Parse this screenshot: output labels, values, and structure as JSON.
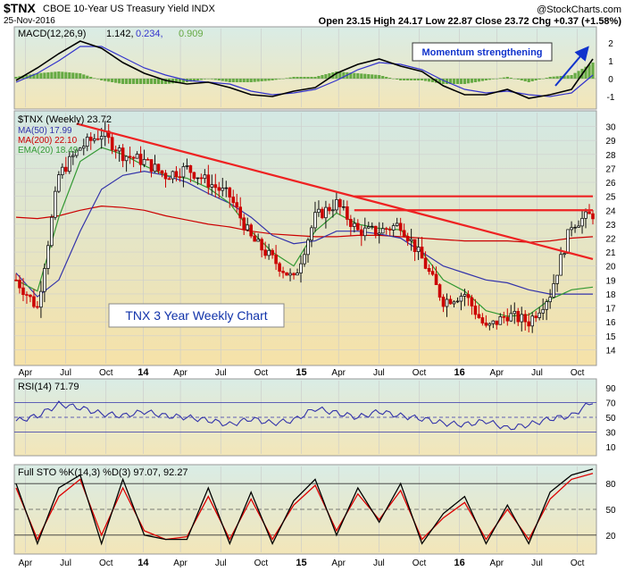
{
  "header": {
    "symbol": "$TNX",
    "name": "CBOE 10-Year US Treasury Yield INDX",
    "date": "25-Nov-2016",
    "quote": "Open 23.15  High 24.17  Low 22.87  Close 23.72  Chg +0.37 (+1.58%)",
    "copyright": "@StockCharts.com"
  },
  "chart_data": [
    {
      "panel": "macd",
      "type": "line",
      "legend_prefix": "MACD(12,26,9)",
      "macd_value": "1.142,",
      "signal_value": "0.234,",
      "hist_value": "0.909",
      "annotation": "Momentum strengthening",
      "ylim": [
        -1.6,
        2.8
      ],
      "yticks": [
        "2",
        "1",
        "0",
        "-1"
      ],
      "colors": {
        "macd": "#000000",
        "signal": "#3333cc",
        "hist": "#66aa44"
      },
      "x": [
        0,
        6,
        12,
        18,
        24,
        30,
        36,
        42,
        48,
        54,
        60,
        66,
        72,
        78,
        84,
        90,
        96,
        102,
        108,
        114,
        120,
        126,
        132,
        138,
        144,
        150,
        156,
        162
      ],
      "macd": [
        -0.1,
        0.6,
        1.4,
        2.1,
        1.7,
        0.9,
        0.3,
        -0.1,
        -0.3,
        -0.2,
        -0.5,
        -0.9,
        -1.0,
        -0.7,
        -0.5,
        0.3,
        0.8,
        1.1,
        0.7,
        0.4,
        -0.4,
        -0.9,
        -0.9,
        -0.6,
        -1.1,
        -0.9,
        -0.6,
        1.1
      ],
      "signal": [
        -0.2,
        0.3,
        1.0,
        1.8,
        1.8,
        1.2,
        0.6,
        0.2,
        -0.1,
        -0.2,
        -0.3,
        -0.7,
        -0.9,
        -0.8,
        -0.6,
        -0.1,
        0.5,
        0.9,
        0.8,
        0.5,
        -0.1,
        -0.6,
        -0.8,
        -0.7,
        -0.9,
        -1.0,
        -0.8,
        0.2
      ]
    },
    {
      "panel": "price",
      "type": "line",
      "legend_main": "$TNX (Weekly) 23.72",
      "legend_ma50": "MA(50) 17.99",
      "legend_ma200": "MA(200) 22.10",
      "legend_ema20": "EMA(20) 18.49",
      "caption": "TNX 3 Year Weekly Chart",
      "ylim": [
        13,
        31
      ],
      "yticks": [
        "30",
        "29",
        "28",
        "27",
        "26",
        "25",
        "24",
        "23",
        "22",
        "21",
        "20",
        "19",
        "18",
        "17",
        "16",
        "15",
        "14"
      ],
      "colors": {
        "price": "#000000",
        "ma50": "#3333aa",
        "ma200": "#cc0000",
        "ema20": "#339933",
        "trend": "#ee2222"
      },
      "x": [
        0,
        6,
        12,
        18,
        24,
        30,
        36,
        42,
        48,
        54,
        60,
        66,
        72,
        78,
        84,
        90,
        96,
        102,
        108,
        114,
        120,
        126,
        132,
        138,
        144,
        150,
        156,
        162
      ],
      "close": [
        19.0,
        17.0,
        26.5,
        28.5,
        29.5,
        28.0,
        27.5,
        26.5,
        27.0,
        26.0,
        25.0,
        22.0,
        20.5,
        19.0,
        23.5,
        24.5,
        22.5,
        22.5,
        23.0,
        20.5,
        17.5,
        18.0,
        15.5,
        16.5,
        16.0,
        18.0,
        23.0,
        23.72
      ],
      "ma50": [
        19.5,
        17.8,
        19.0,
        22.5,
        25.5,
        26.5,
        26.8,
        26.5,
        26.0,
        25.2,
        24.5,
        23.5,
        22.2,
        21.6,
        21.8,
        22.5,
        22.5,
        22.3,
        22.0,
        21.0,
        20.0,
        19.5,
        19.0,
        18.8,
        18.3,
        17.99,
        17.99,
        17.99
      ],
      "ma200": [
        23.5,
        23.4,
        23.6,
        24.0,
        24.3,
        24.2,
        24.0,
        23.6,
        23.3,
        23.0,
        22.8,
        22.5,
        22.3,
        22.2,
        22.1,
        22.1,
        22.2,
        22.2,
        22.1,
        22.0,
        21.9,
        21.8,
        21.8,
        21.8,
        21.7,
        21.8,
        22.0,
        22.1
      ],
      "ema20": [
        19.0,
        18.2,
        23.5,
        27.5,
        28.5,
        28.0,
        27.2,
        26.5,
        26.3,
        25.6,
        24.5,
        22.5,
        21.0,
        20.0,
        22.5,
        23.8,
        23.0,
        22.7,
        22.6,
        21.0,
        19.0,
        18.2,
        16.8,
        16.4,
        16.5,
        17.6,
        18.3,
        18.49
      ],
      "trendlines": [
        {
          "from": [
            17,
            30.2
          ],
          "to": [
            162,
            20.5
          ]
        },
        {
          "from": [
            95,
            25.0
          ],
          "to": [
            162,
            25.0
          ]
        },
        {
          "from": [
            95,
            24.0
          ],
          "to": [
            162,
            24.0
          ]
        }
      ]
    },
    {
      "panel": "rsi",
      "type": "line",
      "legend": "RSI(14) 71.79",
      "ylim": [
        0,
        100
      ],
      "yticks": [
        "90",
        "70",
        "50",
        "30",
        "10"
      ],
      "levels": [
        70,
        50,
        30
      ],
      "color": "#3333aa",
      "x": [
        0,
        6,
        12,
        18,
        24,
        30,
        36,
        42,
        48,
        54,
        60,
        66,
        72,
        78,
        84,
        90,
        96,
        102,
        108,
        114,
        120,
        126,
        132,
        138,
        144,
        150,
        156,
        162
      ],
      "values": [
        45,
        52,
        68,
        63,
        55,
        52,
        58,
        52,
        50,
        46,
        40,
        48,
        42,
        46,
        62,
        56,
        50,
        58,
        52,
        48,
        42,
        40,
        45,
        35,
        40,
        48,
        52,
        72
      ]
    },
    {
      "panel": "sto",
      "type": "line",
      "legend": "Full STO %K(14,3) %D(3) 97.07, 92.27",
      "ylim": [
        0,
        100
      ],
      "yticks": [
        "80",
        "50",
        "20"
      ],
      "levels": [
        80,
        50,
        20
      ],
      "colors": {
        "k": "#000000",
        "d": "#dd0000"
      },
      "x": [
        0,
        6,
        12,
        18,
        24,
        30,
        36,
        42,
        48,
        54,
        60,
        66,
        72,
        78,
        84,
        90,
        96,
        102,
        108,
        114,
        120,
        126,
        132,
        138,
        144,
        150,
        156,
        162
      ],
      "k": [
        80,
        10,
        75,
        90,
        10,
        85,
        20,
        15,
        15,
        75,
        10,
        70,
        10,
        60,
        85,
        20,
        75,
        35,
        80,
        10,
        45,
        65,
        10,
        55,
        10,
        70,
        90,
        97
      ],
      "d": [
        75,
        15,
        65,
        85,
        20,
        75,
        25,
        15,
        18,
        65,
        15,
        62,
        15,
        55,
        78,
        25,
        68,
        38,
        72,
        15,
        40,
        58,
        15,
        50,
        15,
        62,
        85,
        92
      ]
    }
  ],
  "x_axis": {
    "labels": [
      {
        "t": 3,
        "text": "Apr"
      },
      {
        "t": 16,
        "text": "Jul"
      },
      {
        "t": 29,
        "text": "Oct"
      },
      {
        "t": 41,
        "text": "14"
      },
      {
        "t": 53,
        "text": "Apr"
      },
      {
        "t": 66,
        "text": "Jul"
      },
      {
        "t": 79,
        "text": "Oct"
      },
      {
        "t": 92,
        "text": "15"
      },
      {
        "t": 104,
        "text": "Apr"
      },
      {
        "t": 117,
        "text": "Jul"
      },
      {
        "t": 130,
        "text": "Oct"
      },
      {
        "t": 143,
        "text": "16"
      },
      {
        "t": 155,
        "text": "Apr"
      },
      {
        "t": 168,
        "text": "Jul"
      },
      {
        "t": 181,
        "text": "Oct"
      }
    ],
    "bold": [
      "14",
      "15",
      "16"
    ]
  }
}
